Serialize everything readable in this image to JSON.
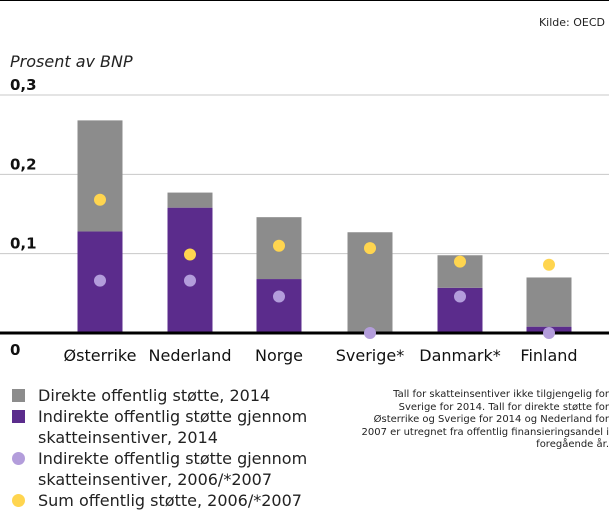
{
  "source": "Kilde: OECD",
  "note": "Tall for skatteinsentiver ikke tilgjengelig for Sverige for 2014. Tall for direkte støtte for Østerrike og Sverige for 2014 og Nederland for 2007 er utregnet fra offentlig finansieringsandel i foregående år.",
  "colors": {
    "direct": "#8c8c8c",
    "indirect": "#5b2c8c",
    "indirect_old": "#b39ddb",
    "sum_old": "#ffd54f",
    "grid": "#c8c8c8",
    "axis": "#000000"
  },
  "chart_data": {
    "type": "bar",
    "stacked": true,
    "ylabel": "Prosent av BNP",
    "ylim": [
      0,
      0.3
    ],
    "yticks": [
      {
        "value": 0,
        "label": "0"
      },
      {
        "value": 0.1,
        "label": "0,1"
      },
      {
        "value": 0.2,
        "label": "0,2"
      },
      {
        "value": 0.3,
        "label": "0,3"
      }
    ],
    "grid": true,
    "categories": [
      "Østerrike",
      "Nederland",
      "Norge",
      "Sverige*",
      "Danmark*",
      "Finland"
    ],
    "series": [
      {
        "name": "Indirekte offentlig støtte gjennom skatteinsentiver, 2014",
        "kind": "bar",
        "color": "indirect",
        "values": [
          0.128,
          0.158,
          0.068,
          0,
          0.057,
          0.008
        ]
      },
      {
        "name": "Direkte offentlig støtte, 2014",
        "kind": "bar",
        "color": "direct",
        "values": [
          0.14,
          0.019,
          0.078,
          0.127,
          0.041,
          0.062
        ]
      },
      {
        "name": "Indirekte offentlig støtte gjennom skatteinsentiver, 2006/*2007",
        "kind": "point",
        "color": "indirect_old",
        "values": [
          0.066,
          0.066,
          0.046,
          0,
          0.046,
          0
        ]
      },
      {
        "name": "Sum offentlig støtte, 2006/*2007",
        "kind": "point",
        "color": "sum_old",
        "values": [
          0.168,
          0.099,
          0.11,
          0.107,
          0.09,
          0.086
        ]
      }
    ],
    "legend": [
      {
        "label": "Direkte offentlig støtte, 2014",
        "marker": "square",
        "color": "direct"
      },
      {
        "label": "Indirekte offentlig støtte gjennom skatteinsentiver, 2014",
        "marker": "square",
        "color": "indirect"
      },
      {
        "label": "Indirekte offentlig støtte gjennom skatteinsentiver, 2006/*2007",
        "marker": "circle",
        "color": "indirect_old"
      },
      {
        "label": "Sum offentlig støtte, 2006/*2007",
        "marker": "circle",
        "color": "sum_old"
      }
    ],
    "legend_position": "bottom-left"
  }
}
